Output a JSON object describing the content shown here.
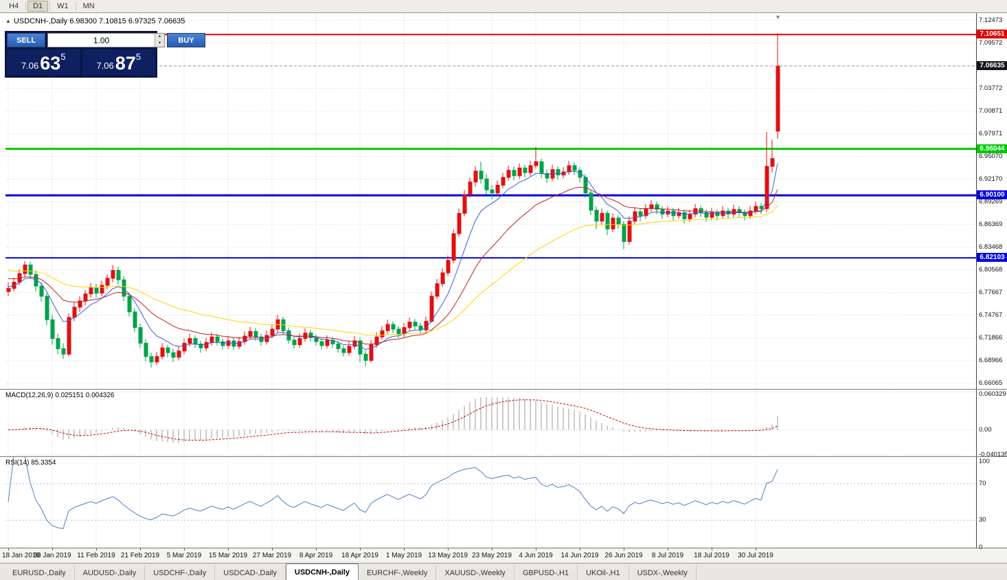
{
  "toolbar": {
    "periods": [
      "H4",
      "D1",
      "W1",
      "MN"
    ],
    "active_period": "D1"
  },
  "icons": {
    "collapse_arrow": "▲",
    "spin_up": "▲",
    "spin_down": "▼",
    "shift_marker": "▼"
  },
  "chart": {
    "title": "USDCNH-,Daily 6.98300 7.10815 6.97325 7.06635"
  },
  "trade_panel": {
    "sell_label": "SELL",
    "buy_label": "BUY",
    "volume": "1.00",
    "sell_price": {
      "prefix": "7.06",
      "main": "63",
      "sup": "5"
    },
    "buy_price": {
      "prefix": "7.06",
      "main": "87",
      "sup": "5"
    },
    "colors": {
      "panel": "#0a1640",
      "button": "#2f62b8"
    }
  },
  "tabs": {
    "items": [
      "EURUSD-,Daily",
      "AUDUSD-,Daily",
      "USDCHF-,Daily",
      "USDCAD-,Daily",
      "USDCNH-,Daily",
      "EURCHF-,Weekly",
      "XAUUSD-,Weekly",
      "GBPUSD-,H1",
      "UKOil-,H1",
      "USDX-,Weekly"
    ],
    "active_index": 4
  },
  "chart_data": {
    "type": "candlestick",
    "title": "USDCNH-,Daily",
    "symbol": "USDCNH-",
    "timeframe": "Daily",
    "last_bar": {
      "open": 6.983,
      "high": 7.10815,
      "low": 6.97325,
      "close": 7.06635
    },
    "ylim": [
      6.6535,
      7.134
    ],
    "grid": true,
    "colors": {
      "bull": "#e01010",
      "bear": "#00a24a",
      "grid": "#d4d4d4",
      "current_line": "#999999"
    },
    "price_axis_ticks": [
      6.66065,
      6.68966,
      6.71866,
      6.74767,
      6.77667,
      6.80568,
      6.83468,
      6.86369,
      6.89269,
      6.9217,
      6.9507,
      6.97971,
      7.00871,
      7.03772,
      7.06672,
      7.09572,
      7.12473
    ],
    "hlines": [
      {
        "value": 7.10651,
        "color": "#e60000",
        "width": 2,
        "label": "7.10651"
      },
      {
        "value": 6.96044,
        "color": "#00cc00",
        "width": 3,
        "label": "6.96044"
      },
      {
        "value": 6.901,
        "color": "#0000e0",
        "width": 3,
        "label": "6.90100"
      },
      {
        "value": 6.82103,
        "color": "#0000e0",
        "width": 2,
        "label": "6.82103"
      }
    ],
    "current_price": {
      "value": 7.06635,
      "label": "7.06635",
      "bg": "#15151d"
    },
    "moving_averages": [
      {
        "type": "ema",
        "period": 8,
        "color": "#3b5bdb",
        "seed": 6.785
      },
      {
        "type": "ema",
        "period": 20,
        "color": "#c02020",
        "seed": 6.796
      },
      {
        "type": "ema",
        "period": 45,
        "color": "#ffd400",
        "seed": 6.806
      }
    ],
    "x_label_step": 8,
    "x_labels": [
      "18 Jan 2019",
      "30 Jan 2019",
      "11 Feb 2019",
      "21 Feb 2019",
      "5 Mar 2019",
      "15 Mar 2019",
      "27 Mar 2019",
      "8 Apr 2019",
      "18 Apr 2019",
      "1 May 2019",
      "13 May 2019",
      "23 May 2019",
      "4 Jun 2019",
      "14 Jun 2019",
      "26 Jun 2019",
      "8 Jul 2019",
      "18 Jul 2019",
      "30 Jul 2019"
    ],
    "candles": [
      [
        6.778,
        6.79,
        6.772,
        6.782
      ],
      [
        6.782,
        6.796,
        6.778,
        6.79
      ],
      [
        6.79,
        6.806,
        6.786,
        6.801
      ],
      [
        6.801,
        6.817,
        6.796,
        6.812
      ],
      [
        6.812,
        6.816,
        6.794,
        6.8
      ],
      [
        6.8,
        6.805,
        6.778,
        6.785
      ],
      [
        6.785,
        6.79,
        6.765,
        6.772
      ],
      [
        6.772,
        6.776,
        6.735,
        6.742
      ],
      [
        6.742,
        6.748,
        6.71,
        6.718
      ],
      [
        6.718,
        6.724,
        6.698,
        6.705
      ],
      [
        6.705,
        6.712,
        6.692,
        6.698
      ],
      [
        6.698,
        6.75,
        6.695,
        6.745
      ],
      [
        6.745,
        6.764,
        6.74,
        6.758
      ],
      [
        6.758,
        6.772,
        6.752,
        6.766
      ],
      [
        6.766,
        6.78,
        6.76,
        6.775
      ],
      [
        6.775,
        6.789,
        6.77,
        6.783
      ],
      [
        6.783,
        6.788,
        6.77,
        6.776
      ],
      [
        6.776,
        6.792,
        6.772,
        6.786
      ],
      [
        6.786,
        6.8,
        6.781,
        6.795
      ],
      [
        6.795,
        6.812,
        6.79,
        6.805
      ],
      [
        6.805,
        6.81,
        6.787,
        6.793
      ],
      [
        6.793,
        6.798,
        6.766,
        6.772
      ],
      [
        6.772,
        6.777,
        6.746,
        6.752
      ],
      [
        6.752,
        6.757,
        6.726,
        6.732
      ],
      [
        6.732,
        6.737,
        6.706,
        6.712
      ],
      [
        6.712,
        6.717,
        6.689,
        6.695
      ],
      [
        6.695,
        6.7,
        6.681,
        6.688
      ],
      [
        6.688,
        6.701,
        6.684,
        6.695
      ],
      [
        6.695,
        6.712,
        6.691,
        6.706
      ],
      [
        6.706,
        6.71,
        6.694,
        6.7
      ],
      [
        6.7,
        6.705,
        6.688,
        6.694
      ],
      [
        6.694,
        6.708,
        6.69,
        6.702
      ],
      [
        6.702,
        6.718,
        6.698,
        6.712
      ],
      [
        6.712,
        6.724,
        6.708,
        6.718
      ],
      [
        6.718,
        6.722,
        6.706,
        6.711
      ],
      [
        6.711,
        6.715,
        6.7,
        6.706
      ],
      [
        6.706,
        6.719,
        6.702,
        6.713
      ],
      [
        6.713,
        6.726,
        6.709,
        6.72
      ],
      [
        6.72,
        6.724,
        6.709,
        6.714
      ],
      [
        6.714,
        6.718,
        6.704,
        6.709
      ],
      [
        6.709,
        6.721,
        6.705,
        6.715
      ],
      [
        6.715,
        6.719,
        6.703,
        6.708
      ],
      [
        6.708,
        6.72,
        6.704,
        6.714
      ],
      [
        6.714,
        6.727,
        6.71,
        6.721
      ],
      [
        6.721,
        6.733,
        6.717,
        6.727
      ],
      [
        6.727,
        6.731,
        6.715,
        6.72
      ],
      [
        6.72,
        6.724,
        6.709,
        6.714
      ],
      [
        6.714,
        6.728,
        6.71,
        6.722
      ],
      [
        6.722,
        6.736,
        6.718,
        6.73
      ],
      [
        6.73,
        6.748,
        6.726,
        6.742
      ],
      [
        6.742,
        6.746,
        6.723,
        6.728
      ],
      [
        6.728,
        6.732,
        6.711,
        6.716
      ],
      [
        6.716,
        6.72,
        6.705,
        6.71
      ],
      [
        6.71,
        6.724,
        6.706,
        6.718
      ],
      [
        6.718,
        6.731,
        6.714,
        6.725
      ],
      [
        6.725,
        6.729,
        6.714,
        6.719
      ],
      [
        6.719,
        6.723,
        6.709,
        6.714
      ],
      [
        6.714,
        6.718,
        6.704,
        6.709
      ],
      [
        6.709,
        6.722,
        6.705,
        6.716
      ],
      [
        6.716,
        6.72,
        6.706,
        6.711
      ],
      [
        6.711,
        6.715,
        6.7,
        6.705
      ],
      [
        6.705,
        6.709,
        6.695,
        6.7
      ],
      [
        6.7,
        6.714,
        6.696,
        6.708
      ],
      [
        6.708,
        6.721,
        6.704,
        6.715
      ],
      [
        6.715,
        6.719,
        6.688,
        6.698
      ],
      [
        6.698,
        6.703,
        6.682,
        6.69
      ],
      [
        6.69,
        6.716,
        6.687,
        6.71
      ],
      [
        6.71,
        6.726,
        6.706,
        6.72
      ],
      [
        6.72,
        6.734,
        6.716,
        6.728
      ],
      [
        6.728,
        6.742,
        6.724,
        6.736
      ],
      [
        6.736,
        6.74,
        6.725,
        6.73
      ],
      [
        6.73,
        6.734,
        6.719,
        6.724
      ],
      [
        6.724,
        6.738,
        6.72,
        6.732
      ],
      [
        6.732,
        6.745,
        6.728,
        6.739
      ],
      [
        6.739,
        6.743,
        6.729,
        6.734
      ],
      [
        6.734,
        6.738,
        6.724,
        6.729
      ],
      [
        6.729,
        6.746,
        6.725,
        6.74
      ],
      [
        6.74,
        6.778,
        6.738,
        6.772
      ],
      [
        6.772,
        6.794,
        6.768,
        6.788
      ],
      [
        6.788,
        6.808,
        6.784,
        6.802
      ],
      [
        6.802,
        6.824,
        6.798,
        6.818
      ],
      [
        6.818,
        6.858,
        6.814,
        6.852
      ],
      [
        6.852,
        6.884,
        6.848,
        6.878
      ],
      [
        6.878,
        6.908,
        6.874,
        6.902
      ],
      [
        6.902,
        6.924,
        6.898,
        6.918
      ],
      [
        6.918,
        6.938,
        6.912,
        6.932
      ],
      [
        6.932,
        6.944,
        6.916,
        6.922
      ],
      [
        6.922,
        6.928,
        6.902,
        6.908
      ],
      [
        6.908,
        6.914,
        6.896,
        6.904
      ],
      [
        6.904,
        6.92,
        6.9,
        6.914
      ],
      [
        6.914,
        6.93,
        6.91,
        6.924
      ],
      [
        6.924,
        6.939,
        6.92,
        6.933
      ],
      [
        6.933,
        6.938,
        6.92,
        6.926
      ],
      [
        6.926,
        6.942,
        6.922,
        6.936
      ],
      [
        6.936,
        6.94,
        6.924,
        6.93
      ],
      [
        6.93,
        6.945,
        6.926,
        6.939
      ],
      [
        6.939,
        6.963,
        6.935,
        6.944
      ],
      [
        6.944,
        6.948,
        6.923,
        6.929
      ],
      [
        6.929,
        6.934,
        6.917,
        6.923
      ],
      [
        6.923,
        6.94,
        6.919,
        6.934
      ],
      [
        6.934,
        6.938,
        6.921,
        6.927
      ],
      [
        6.927,
        6.937,
        6.923,
        6.931
      ],
      [
        6.931,
        6.945,
        6.927,
        6.939
      ],
      [
        6.939,
        6.943,
        6.927,
        6.933
      ],
      [
        6.933,
        6.937,
        6.918,
        6.924
      ],
      [
        6.924,
        6.928,
        6.898,
        6.904
      ],
      [
        6.904,
        6.908,
        6.876,
        6.882
      ],
      [
        6.882,
        6.887,
        6.858,
        6.868
      ],
      [
        6.868,
        6.884,
        6.864,
        6.878
      ],
      [
        6.878,
        6.882,
        6.85,
        6.858
      ],
      [
        6.858,
        6.878,
        6.854,
        6.872
      ],
      [
        6.872,
        6.876,
        6.858,
        6.864
      ],
      [
        6.864,
        6.868,
        6.832,
        6.842
      ],
      [
        6.842,
        6.874,
        6.838,
        6.868
      ],
      [
        6.868,
        6.886,
        6.864,
        6.88
      ],
      [
        6.88,
        6.884,
        6.868,
        6.875
      ],
      [
        6.875,
        6.89,
        6.871,
        6.884
      ],
      [
        6.884,
        6.895,
        6.88,
        6.889
      ],
      [
        6.889,
        6.893,
        6.877,
        6.883
      ],
      [
        6.883,
        6.887,
        6.871,
        6.877
      ],
      [
        6.877,
        6.887,
        6.873,
        6.881
      ],
      [
        6.881,
        6.885,
        6.869,
        6.875
      ],
      [
        6.875,
        6.885,
        6.871,
        6.879
      ],
      [
        6.879,
        6.883,
        6.865,
        6.871
      ],
      [
        6.871,
        6.883,
        6.867,
        6.877
      ],
      [
        6.877,
        6.89,
        6.873,
        6.884
      ],
      [
        6.884,
        6.888,
        6.873,
        6.879
      ],
      [
        6.879,
        6.883,
        6.867,
        6.873
      ],
      [
        6.873,
        6.885,
        6.869,
        6.879
      ],
      [
        6.879,
        6.883,
        6.869,
        6.875
      ],
      [
        6.875,
        6.887,
        6.871,
        6.881
      ],
      [
        6.881,
        6.885,
        6.871,
        6.877
      ],
      [
        6.877,
        6.889,
        6.873,
        6.883
      ],
      [
        6.883,
        6.887,
        6.873,
        6.879
      ],
      [
        6.879,
        6.883,
        6.869,
        6.875
      ],
      [
        6.875,
        6.887,
        6.871,
        6.881
      ],
      [
        6.881,
        6.893,
        6.877,
        6.887
      ],
      [
        6.887,
        6.891,
        6.877,
        6.884
      ],
      [
        6.884,
        6.982,
        6.88,
        6.938
      ],
      [
        6.938,
        6.972,
        6.93,
        6.948
      ],
      [
        6.983,
        7.10815,
        6.97325,
        7.06635
      ]
    ],
    "macd": {
      "label": "MACD(12,26,9) 0.025151 0.004326",
      "params": [
        12,
        26,
        9
      ],
      "ylim": [
        -0.042,
        0.065
      ],
      "colors": {
        "histogram": "#9a9a9a",
        "signal": "#cc0000"
      },
      "axis": [
        {
          "v": 0.060329,
          "label": "0.060329"
        },
        {
          "v": 0,
          "label": "0.00"
        },
        {
          "v": -0.040135,
          "label": "-0.040135"
        }
      ]
    },
    "rsi": {
      "label": "RSI(14) 85.3354",
      "period": 14,
      "last_value": 85.3354,
      "levels": [
        70,
        30
      ],
      "ylim": [
        0,
        100
      ],
      "colors": {
        "line": "#4f7dbf",
        "level": "#b8b8d0"
      },
      "axis": [
        {
          "v": 100,
          "label": "100"
        },
        {
          "v": 70,
          "label": "70"
        },
        {
          "v": 30,
          "label": "30"
        },
        {
          "v": 0,
          "label": "0"
        }
      ]
    }
  }
}
